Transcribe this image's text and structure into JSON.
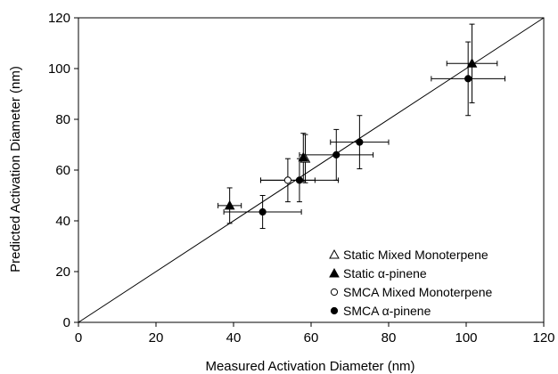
{
  "chart_data": {
    "type": "scatter",
    "xlabel": "Measured Activation Diameter (nm)",
    "ylabel": "Predicted Activation Diameter (nm)",
    "xlim": [
      0,
      120
    ],
    "ylim": [
      0,
      120
    ],
    "xticks": [
      0,
      20,
      40,
      60,
      80,
      100,
      120
    ],
    "yticks": [
      0,
      20,
      40,
      60,
      80,
      100,
      120
    ],
    "x_tick_labels": [
      "0",
      "20",
      "40",
      "60",
      "80",
      "100",
      "120"
    ],
    "y_tick_labels": [
      "0",
      "20",
      "40",
      "60",
      "80",
      "100",
      "120"
    ],
    "grid": false,
    "legend_position": "bottom-right",
    "reference_line": {
      "kind": "1:1",
      "from": [
        0,
        0
      ],
      "to": [
        120,
        120
      ]
    },
    "series": [
      {
        "name": "Static Mixed Monoterpene",
        "marker": "triangle-open",
        "points": [
          {
            "x": 58.5,
            "y": 64.5,
            "xerr": 0,
            "yerr": 9.5
          }
        ]
      },
      {
        "name": "Static α-pinene",
        "marker": "triangle-filled",
        "points": [
          {
            "x": 39,
            "y": 46,
            "xerr": 3,
            "yerr": 7
          },
          {
            "x": 58,
            "y": 65,
            "xerr": 0,
            "yerr": 9.5
          },
          {
            "x": 101.5,
            "y": 102,
            "xerr": 6.5,
            "yerr": 15.5
          }
        ]
      },
      {
        "name": "SMCA Mixed Monoterpene",
        "marker": "circle-open",
        "points": [
          {
            "x": 54,
            "y": 56,
            "xerr": 7,
            "yerr": 8.5
          }
        ]
      },
      {
        "name": "SMCA α-pinene",
        "marker": "circle-filled",
        "points": [
          {
            "x": 47.5,
            "y": 43.5,
            "xerr": 10,
            "yerr": 6.5
          },
          {
            "x": 57,
            "y": 56,
            "xerr": 10,
            "yerr": 8.5
          },
          {
            "x": 66.5,
            "y": 66,
            "xerr": 9.5,
            "yerr": 10
          },
          {
            "x": 72.5,
            "y": 71,
            "xerr": 7.5,
            "yerr": 10.5
          },
          {
            "x": 100.5,
            "y": 96,
            "xerr": 9.5,
            "yerr": 14.5
          }
        ]
      }
    ]
  }
}
